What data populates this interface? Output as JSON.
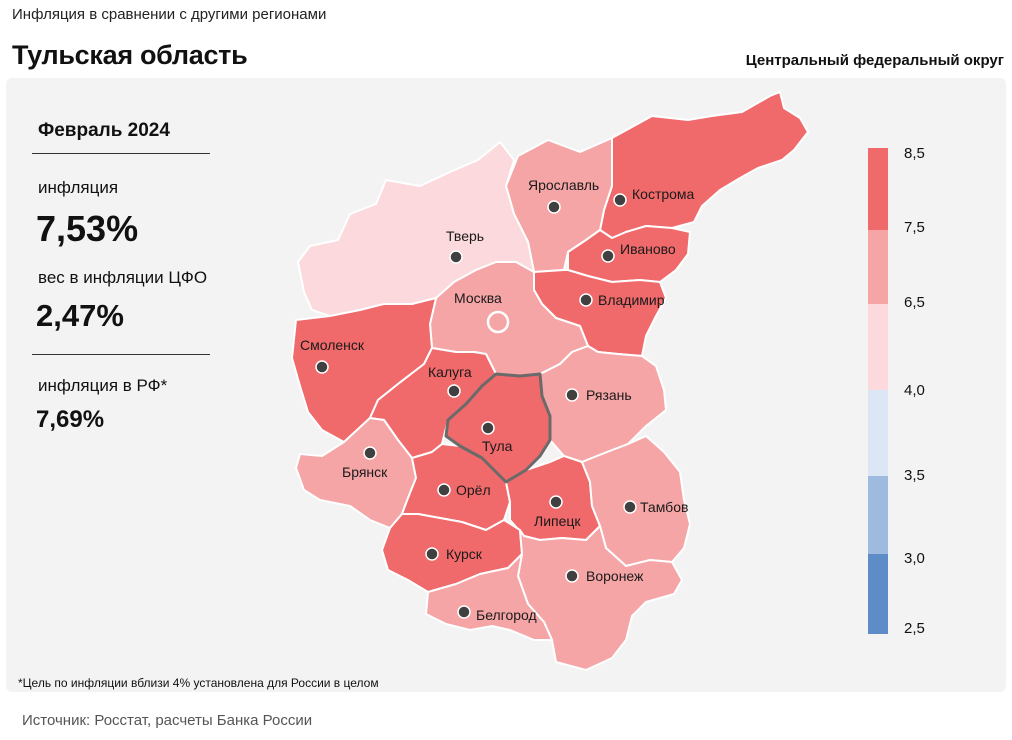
{
  "header": {
    "caption": "Инфляция в сравнении с другими регионами",
    "region": "Тульская область",
    "district": "Центральный федеральный округ"
  },
  "stats": {
    "period": "Февраль 2024",
    "inflation_label": "инфляция",
    "inflation_value": "7,53%",
    "weight_label": "вес в инфляции ЦФО",
    "weight_value": "2,47%",
    "rf_label": "инфляция в РФ*",
    "rf_value": "7,69%"
  },
  "map": {
    "regions": [
      {
        "name": "Кострома",
        "color": "#f0696b"
      },
      {
        "name": "Ярославль",
        "color": "#f5a5a6"
      },
      {
        "name": "Иваново",
        "color": "#f0696b"
      },
      {
        "name": "Владимир",
        "color": "#f0696b"
      },
      {
        "name": "Тверь",
        "color": "#fbd9dc"
      },
      {
        "name": "Москва",
        "color": "#f5a5a6"
      },
      {
        "name": "Смоленск",
        "color": "#f0696b"
      },
      {
        "name": "Калуга",
        "color": "#f0696b"
      },
      {
        "name": "Рязань",
        "color": "#f5a5a6"
      },
      {
        "name": "Тула",
        "color": "#f0696b"
      },
      {
        "name": "Брянск",
        "color": "#f5a5a6"
      },
      {
        "name": "Орёл",
        "color": "#f0696b"
      },
      {
        "name": "Липецк",
        "color": "#f0696b"
      },
      {
        "name": "Тамбов",
        "color": "#f5a5a6"
      },
      {
        "name": "Курск",
        "color": "#f0696b"
      },
      {
        "name": "Воронеж",
        "color": "#f5a5a6"
      },
      {
        "name": "Белгород",
        "color": "#f5a5a6"
      }
    ]
  },
  "legend": {
    "ticks": [
      "8,5",
      "7,5",
      "6,5",
      "4,0",
      "3,5",
      "3,0",
      "2,5"
    ],
    "colors": [
      "#f0696b",
      "#f5a5a6",
      "#fbd9dc",
      "#dde6f4",
      "#9fbadf",
      "#5d8cc7"
    ]
  },
  "footer": {
    "footnote": "*Цель по инфляции вблизи 4% установлена для России в целом",
    "source": "Источник: Росстат, расчеты Банка России"
  }
}
